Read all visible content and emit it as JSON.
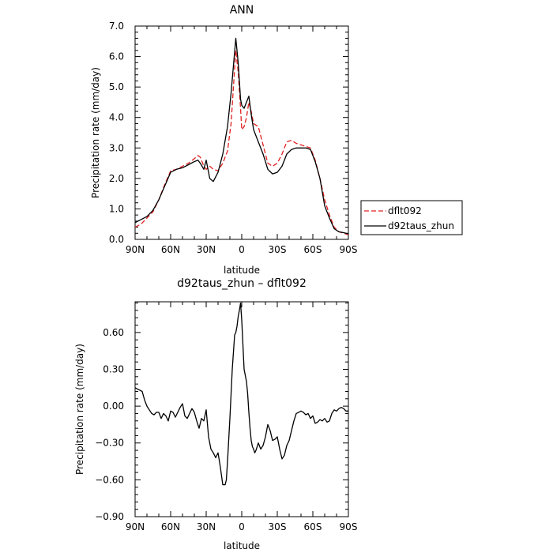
{
  "chart_data": [
    {
      "type": "line",
      "title": "ANN",
      "xlabel": "latitude",
      "ylabel": "Precipitation rate (mm/day)",
      "xlim": [
        -90,
        90
      ],
      "ylim": [
        0,
        7
      ],
      "xticks": [
        {
          "value": -90,
          "label": "90N"
        },
        {
          "value": -60,
          "label": "60N"
        },
        {
          "value": -30,
          "label": "30N"
        },
        {
          "value": 0,
          "label": "0"
        },
        {
          "value": 30,
          "label": "30S"
        },
        {
          "value": 60,
          "label": "60S"
        },
        {
          "value": 90,
          "label": "90S"
        }
      ],
      "yticks": [
        {
          "value": 0,
          "label": "0.0"
        },
        {
          "value": 1,
          "label": "1.0"
        },
        {
          "value": 2,
          "label": "2.0"
        },
        {
          "value": 3,
          "label": "3.0"
        },
        {
          "value": 4,
          "label": "4.0"
        },
        {
          "value": 5,
          "label": "5.0"
        },
        {
          "value": 6,
          "label": "6.0"
        },
        {
          "value": 7,
          "label": "7.0"
        }
      ],
      "legend_position": "right",
      "series": [
        {
          "name": "dflt092",
          "color": "#e02020",
          "dash": "dashed",
          "x": [
            -90,
            -85,
            -80,
            -75,
            -70,
            -65,
            -60,
            -55,
            -50,
            -45,
            -40,
            -37,
            -35,
            -32,
            -30,
            -27,
            -24,
            -20,
            -16,
            -12,
            -9,
            -7,
            -5,
            -3,
            -1,
            0,
            2,
            4,
            6,
            8,
            10,
            14,
            18,
            22,
            26,
            30,
            34,
            38,
            42,
            46,
            50,
            54,
            58,
            62,
            66,
            70,
            74,
            78,
            82,
            86,
            90
          ],
          "y": [
            0.4,
            0.5,
            0.7,
            0.9,
            1.3,
            1.8,
            2.25,
            2.3,
            2.4,
            2.5,
            2.65,
            2.75,
            2.7,
            2.4,
            2.3,
            2.4,
            2.3,
            2.25,
            2.5,
            2.9,
            3.8,
            5.0,
            6.2,
            5.5,
            4.3,
            3.6,
            3.7,
            4.0,
            4.5,
            4.2,
            3.8,
            3.7,
            3.1,
            2.5,
            2.4,
            2.5,
            2.8,
            3.2,
            3.25,
            3.15,
            3.1,
            3.05,
            3.0,
            2.6,
            2.0,
            1.3,
            0.8,
            0.4,
            0.25,
            0.2,
            0.15
          ]
        },
        {
          "name": "d92taus_zhun",
          "color": "#000000",
          "dash": "solid",
          "x": [
            -90,
            -85,
            -80,
            -75,
            -70,
            -65,
            -60,
            -55,
            -50,
            -45,
            -40,
            -37,
            -35,
            -32,
            -30,
            -27,
            -24,
            -20,
            -16,
            -12,
            -9,
            -7,
            -5,
            -3,
            -1,
            0,
            2,
            4,
            6,
            8,
            10,
            14,
            18,
            22,
            26,
            30,
            34,
            38,
            42,
            46,
            50,
            54,
            58,
            62,
            66,
            70,
            74,
            78,
            82,
            86,
            90
          ],
          "y": [
            0.55,
            0.65,
            0.75,
            0.95,
            1.3,
            1.75,
            2.2,
            2.3,
            2.35,
            2.45,
            2.55,
            2.6,
            2.5,
            2.3,
            2.6,
            2.0,
            1.9,
            2.2,
            2.8,
            3.7,
            4.8,
            5.7,
            6.6,
            5.8,
            4.6,
            4.4,
            4.3,
            4.5,
            4.7,
            4.1,
            3.6,
            3.2,
            2.8,
            2.3,
            2.15,
            2.2,
            2.4,
            2.8,
            2.95,
            3.0,
            3.0,
            3.0,
            2.95,
            2.55,
            2.0,
            1.1,
            0.7,
            0.35,
            0.25,
            0.22,
            0.18
          ]
        }
      ]
    },
    {
      "type": "line",
      "title": "d92taus_zhun – dflt092",
      "xlabel": "latitude",
      "ylabel": "Precipitation rate (mm/day)",
      "xlim": [
        -90,
        90
      ],
      "ylim": [
        -0.9,
        0.85
      ],
      "xticks": [
        {
          "value": -90,
          "label": "90N"
        },
        {
          "value": -60,
          "label": "60N"
        },
        {
          "value": -30,
          "label": "30N"
        },
        {
          "value": 0,
          "label": "0"
        },
        {
          "value": 30,
          "label": "30S"
        },
        {
          "value": 60,
          "label": "60S"
        },
        {
          "value": 90,
          "label": "90S"
        }
      ],
      "yticks": [
        {
          "value": -0.9,
          "label": "−0.90"
        },
        {
          "value": -0.6,
          "label": "−0.60"
        },
        {
          "value": -0.3,
          "label": "−0.30"
        },
        {
          "value": 0,
          "label": "0.00"
        },
        {
          "value": 0.3,
          "label": "0.30"
        },
        {
          "value": 0.6,
          "label": "0.60"
        }
      ],
      "series": [
        {
          "color": "#000000",
          "dash": "solid",
          "x": [
            -90,
            -88,
            -86,
            -84,
            -82,
            -80,
            -78,
            -76,
            -74,
            -72,
            -70,
            -68,
            -66,
            -64,
            -62,
            -60,
            -58,
            -56,
            -54,
            -52,
            -50,
            -48,
            -46,
            -44,
            -42,
            -40,
            -38,
            -36,
            -34,
            -32,
            -30,
            -28,
            -26,
            -24,
            -22,
            -20,
            -18,
            -16,
            -14,
            -13,
            -12,
            -10,
            -8,
            -6,
            -5,
            -4,
            -3,
            -2,
            -1,
            0,
            1,
            2,
            3,
            4,
            5,
            6,
            7,
            8,
            9,
            10,
            11,
            12,
            14,
            16,
            18,
            20,
            22,
            24,
            26,
            28,
            30,
            32,
            34,
            36,
            38,
            40,
            42,
            44,
            46,
            48,
            50,
            52,
            54,
            56,
            58,
            60,
            62,
            64,
            66,
            68,
            70,
            72,
            74,
            76,
            78,
            80,
            82,
            84,
            86,
            88,
            90
          ],
          "y": [
            0.15,
            0.14,
            0.13,
            0.12,
            0.05,
            0.0,
            -0.03,
            -0.06,
            -0.07,
            -0.05,
            -0.05,
            -0.1,
            -0.06,
            -0.08,
            -0.12,
            -0.04,
            -0.05,
            -0.09,
            -0.05,
            -0.01,
            0.02,
            -0.08,
            -0.1,
            -0.06,
            -0.02,
            -0.05,
            -0.12,
            -0.18,
            -0.1,
            -0.12,
            -0.03,
            -0.25,
            -0.35,
            -0.38,
            -0.42,
            -0.38,
            -0.5,
            -0.64,
            -0.64,
            -0.6,
            -0.45,
            -0.1,
            0.3,
            0.58,
            0.6,
            0.65,
            0.73,
            0.78,
            0.84,
            0.7,
            0.5,
            0.3,
            0.25,
            0.2,
            0.1,
            -0.05,
            -0.18,
            -0.28,
            -0.33,
            -0.35,
            -0.38,
            -0.36,
            -0.3,
            -0.35,
            -0.32,
            -0.25,
            -0.15,
            -0.2,
            -0.28,
            -0.27,
            -0.25,
            -0.35,
            -0.43,
            -0.4,
            -0.32,
            -0.28,
            -0.2,
            -0.12,
            -0.06,
            -0.05,
            -0.04,
            -0.05,
            -0.07,
            -0.06,
            -0.1,
            -0.08,
            -0.14,
            -0.13,
            -0.11,
            -0.12,
            -0.1,
            -0.13,
            -0.12,
            -0.06,
            -0.03,
            -0.04,
            -0.02,
            -0.01,
            -0.02,
            -0.04,
            -0.04
          ]
        }
      ]
    }
  ]
}
